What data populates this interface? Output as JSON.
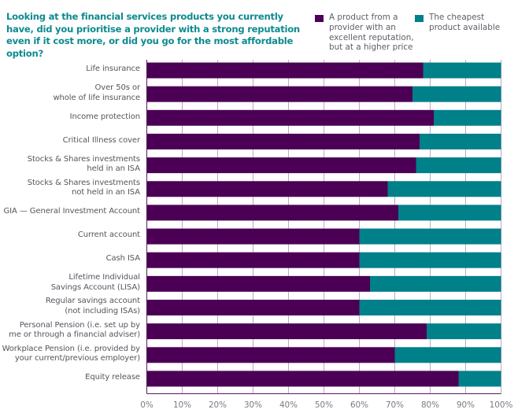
{
  "chart_data": {
    "type": "bar",
    "orientation": "horizontal",
    "stacked": true,
    "title": "Looking at the financial services products you currently have, did you prioritise a provider with a strong reputation even if it cost more, or did you go for the most affordable option?",
    "xlabel": "",
    "ylabel": "",
    "xlim": [
      0,
      100
    ],
    "x_ticks": [
      "0%",
      "10%",
      "20%",
      "30%",
      "40%",
      "50%",
      "60%",
      "70%",
      "80%",
      "90%",
      "100%"
    ],
    "grid": true,
    "legend_position": "top-right",
    "categories": [
      "Life insurance",
      "Over 50s or\nwhole of life insurance",
      "Income protection",
      "Critical Illness cover",
      "Stocks & Shares investments\nheld in an ISA",
      "Stocks & Shares investments\nnot held in an ISA",
      "GIA — General Investment Account",
      "Current account",
      "Cash ISA",
      "Lifetime Individual\nSavings Account (LISA)",
      "Regular savings account\n(not including ISAs)",
      "Personal Pension (i.e. set up by\nme or through a financial adviser)",
      "Workplace Pension (i.e. provided by\nyour current/previous employer)",
      "Equity release"
    ],
    "series": [
      {
        "name": "A product from a\nprovider with an\nexcellent reputation,\nbut at a higher price",
        "color": "#4b0055",
        "values": [
          78,
          75,
          81,
          77,
          76,
          68,
          71,
          60,
          60,
          63,
          60,
          79,
          70,
          88
        ]
      },
      {
        "name": "The cheapest\nproduct available",
        "color": "#008089",
        "values": [
          22,
          25,
          19,
          23,
          24,
          32,
          29,
          40,
          40,
          37,
          40,
          21,
          30,
          12
        ]
      }
    ]
  },
  "colors": {
    "title": "#0d8a8f",
    "grid": "#c2a6cc",
    "axis": "#5a1a66"
  }
}
